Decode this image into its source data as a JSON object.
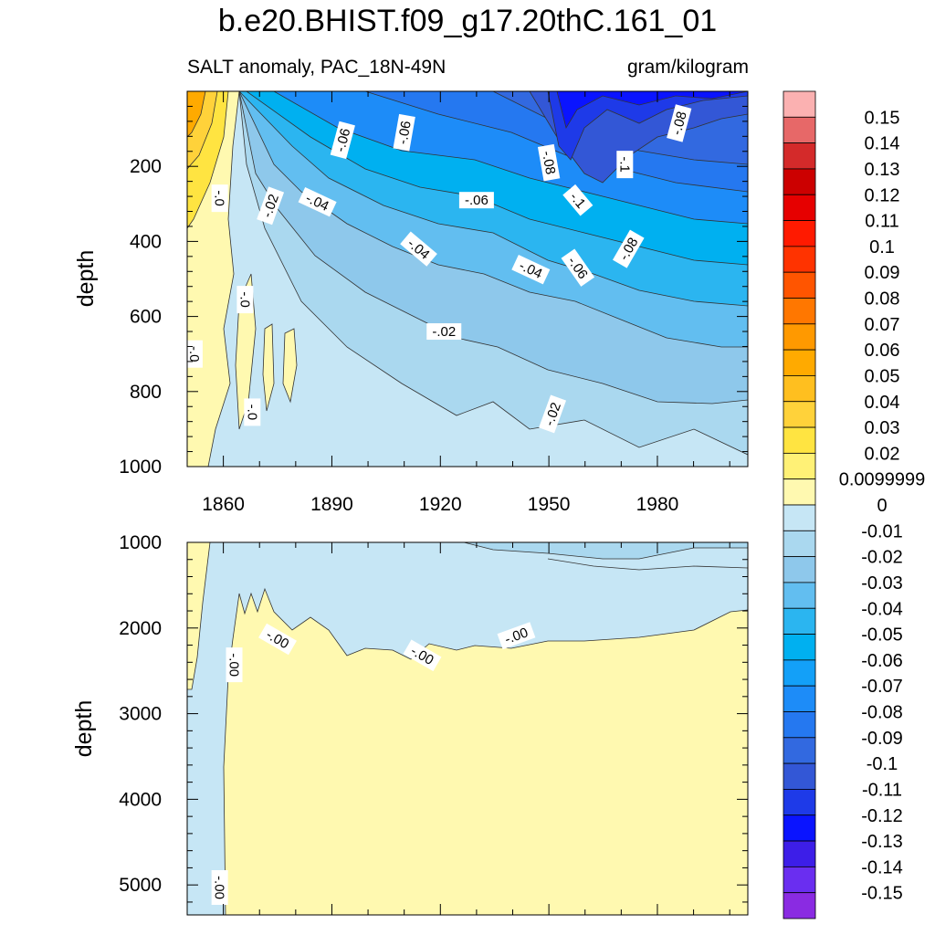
{
  "title": "b.e20.BHIST.f09_g17.20thC.161_01",
  "subtitle_left": "SALT anomaly, PAC_18N-49N",
  "subtitle_right": "gram/kilogram",
  "chart_data": [
    {
      "type": "heatmap",
      "panel": "upper",
      "ylabel": "depth",
      "ylim": [
        0,
        1000
      ],
      "y_reversed": true,
      "y_ticks": [
        200,
        400,
        600,
        800,
        1000
      ],
      "xlim": [
        1850,
        2005
      ],
      "x_ticks": [
        1860,
        1890,
        1920,
        1950,
        1980
      ],
      "contour_labels": [
        {
          "text": "-.06",
          "x": 1893,
          "y": 130,
          "angle": -75
        },
        {
          "text": "-.06",
          "x": 1910,
          "y": 110,
          "angle": -80
        },
        {
          "text": "-.08",
          "x": 1950,
          "y": 190,
          "angle": 80
        },
        {
          "text": "-.1",
          "x": 1971,
          "y": 195,
          "angle": 90
        },
        {
          "text": "-.08",
          "x": 1986,
          "y": 85,
          "angle": -75
        },
        {
          "text": "-.0",
          "x": 1859,
          "y": 285,
          "angle": 90
        },
        {
          "text": "-.02",
          "x": 1873,
          "y": 305,
          "angle": -70
        },
        {
          "text": "-.04",
          "x": 1886,
          "y": 295,
          "angle": 25
        },
        {
          "text": "-.06",
          "x": 1930,
          "y": 290,
          "angle": 0
        },
        {
          "text": "-.1",
          "x": 1958,
          "y": 290,
          "angle": 50
        },
        {
          "text": "-.04",
          "x": 1914,
          "y": 420,
          "angle": 40
        },
        {
          "text": "-.04",
          "x": 1945,
          "y": 475,
          "angle": 25
        },
        {
          "text": "-.06",
          "x": 1958,
          "y": 470,
          "angle": 55
        },
        {
          "text": "-.08",
          "x": 1972,
          "y": 420,
          "angle": -60
        },
        {
          "text": "-.0",
          "x": 1866,
          "y": 555,
          "angle": 90
        },
        {
          "text": "-.02",
          "x": 1921,
          "y": 640,
          "angle": 0
        },
        {
          "text": "-.0",
          "x": 1852,
          "y": 700,
          "angle": 90
        },
        {
          "text": "-.02",
          "x": 1951,
          "y": 860,
          "angle": -70
        },
        {
          "text": "-.0",
          "x": 1868,
          "y": 855,
          "angle": 90
        }
      ]
    },
    {
      "type": "heatmap",
      "panel": "lower",
      "ylabel": "depth",
      "ylim": [
        1000,
        5350
      ],
      "y_reversed": true,
      "y_ticks": [
        1000,
        2000,
        3000,
        4000,
        5000
      ],
      "xlim": [
        1850,
        2005
      ],
      "contour_labels": [
        {
          "text": "-.00",
          "x": 1875,
          "y": 2130,
          "angle": 30
        },
        {
          "text": "-.00",
          "x": 1915,
          "y": 2320,
          "angle": 30
        },
        {
          "text": "-.00",
          "x": 1941,
          "y": 2090,
          "angle": -20
        },
        {
          "text": "-.00",
          "x": 1863,
          "y": 2430,
          "angle": 90
        },
        {
          "text": "-.00",
          "x": 1859,
          "y": 5030,
          "angle": 90
        }
      ]
    }
  ],
  "colorbar": {
    "labels": [
      "0.15",
      "0.14",
      "0.13",
      "0.12",
      "0.11",
      "0.1",
      "0.09",
      "0.08",
      "0.07",
      "0.06",
      "0.05",
      "0.04",
      "0.03",
      "0.02",
      "0.0099999",
      "0",
      "-0.01",
      "-0.02",
      "-0.03",
      "-0.04",
      "-0.05",
      "-0.06",
      "-0.07",
      "-0.08",
      "-0.09",
      "-0.1",
      "-0.11",
      "-0.12",
      "-0.13",
      "-0.14",
      "-0.15"
    ],
    "colors": [
      "#fbb1b1",
      "#e76868",
      "#d42a2a",
      "#cc0000",
      "#e60000",
      "#ff1a00",
      "#ff3300",
      "#ff5500",
      "#ff7700",
      "#ff9900",
      "#ffaa00",
      "#ffbf1f",
      "#ffd23a",
      "#ffe441",
      "#fff176",
      "#fff9b0",
      "#c6e6f5",
      "#aad8ef",
      "#8ec8eb",
      "#62bef0",
      "#2bb5f0",
      "#00b0f0",
      "#13a0f8",
      "#1d8cf8",
      "#2578f0",
      "#3269e0",
      "#3357d6",
      "#1e3ae8",
      "#0a14ff",
      "#3d1ee8",
      "#6a2ef0",
      "#8a2be2"
    ]
  }
}
